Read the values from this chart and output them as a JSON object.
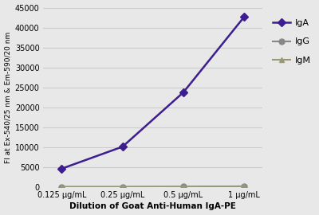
{
  "x_labels": [
    "0.125 μg/mL",
    "0.25 μg/mL",
    "0.5 μg/mL",
    "1 μg/mL"
  ],
  "x_values": [
    0,
    1,
    2,
    3
  ],
  "IgA_values": [
    4700,
    10200,
    23800,
    42700
  ],
  "IgG_values": [
    150,
    150,
    200,
    300
  ],
  "IgM_values": [
    150,
    150,
    180,
    250
  ],
  "IgA_color": "#3d1e8f",
  "IgG_color": "#888888",
  "IgM_color": "#999977",
  "ylabel": "FI at Ex-540/25 nm & Em-590/20 nm",
  "xlabel": "Dilution of Goat Anti-Human IgA-PE",
  "ylim": [
    0,
    45000
  ],
  "yticks": [
    0,
    5000,
    10000,
    15000,
    20000,
    25000,
    30000,
    35000,
    40000,
    45000
  ],
  "background_color": "#e8e8e8",
  "plot_bg_color": "#e8e8e8",
  "legend_labels": [
    "IgA",
    "IgG",
    "IgM"
  ]
}
